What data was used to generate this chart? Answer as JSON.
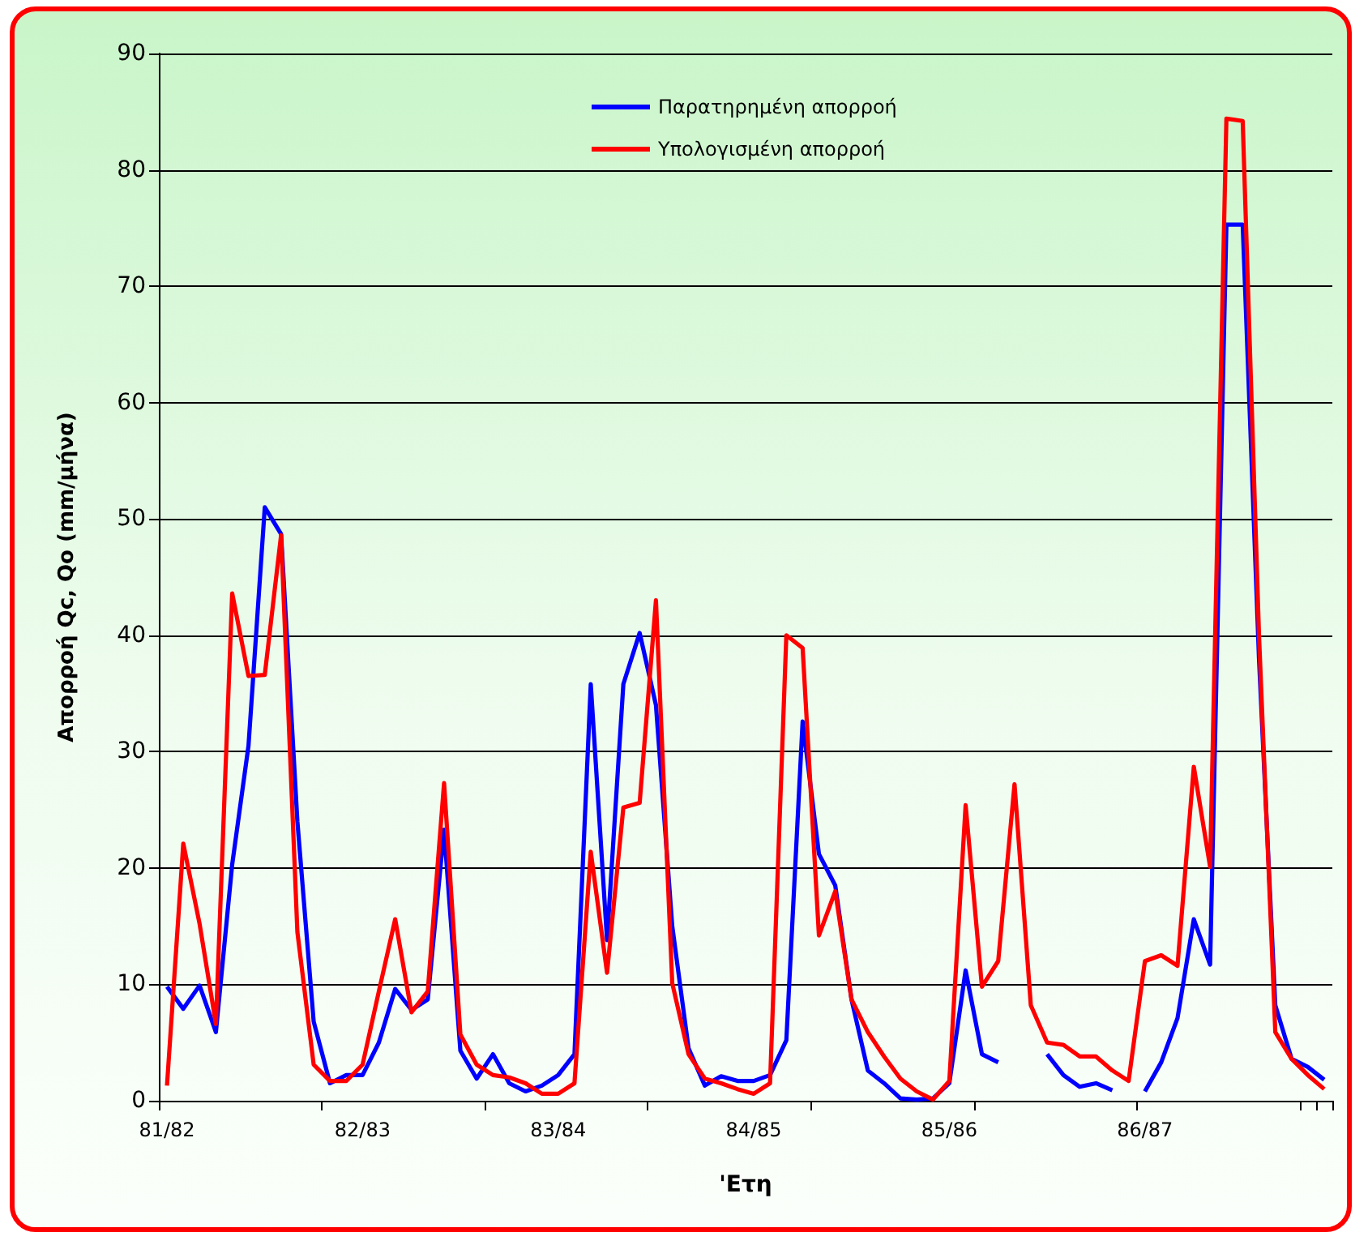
{
  "chart_data": {
    "type": "line",
    "xlabel": "'Ετη",
    "ylabel": "Απορροή Qc, Qo (mm/μήνα)",
    "categories": [
      "81/82",
      null,
      null,
      null,
      null,
      null,
      null,
      null,
      null,
      null,
      null,
      null,
      "82/83",
      null,
      null,
      null,
      null,
      null,
      null,
      null,
      null,
      null,
      null,
      null,
      "83/84",
      null,
      null,
      null,
      null,
      null,
      null,
      null,
      null,
      null,
      null,
      null,
      "84/85",
      null,
      null,
      null,
      null,
      null,
      null,
      null,
      null,
      null,
      null,
      null,
      "85/86",
      null,
      null,
      null,
      null,
      null,
      null,
      null,
      null,
      null,
      null,
      null,
      "86/87",
      null,
      null,
      null,
      null,
      null,
      null,
      null,
      null,
      null,
      null,
      null
    ],
    "series": [
      {
        "name": "Παρατηρημένη απορροή",
        "color": "#0000ff",
        "values": [
          9.8,
          7.9,
          9.9,
          5.9,
          20.3,
          30.5,
          51.0,
          48.7,
          24,
          6.8,
          1.5,
          2.2,
          2.2,
          5.0,
          9.6,
          7.8,
          8.7,
          23.3,
          4.3,
          1.9,
          4.0,
          1.5,
          0.8,
          1.3,
          2.2,
          4.0,
          35.8,
          13.8,
          35.8,
          40.2,
          34,
          15,
          4.5,
          1.3,
          2.1,
          1.7,
          1.7,
          2.2,
          5.2,
          32.6,
          21.2,
          18.5,
          8.7,
          2.6,
          1.5,
          0.2,
          0.1,
          0.2,
          1.5,
          11.2,
          4.0,
          3.3,
          null,
          null,
          4.0,
          2.2,
          1.2,
          1.5,
          0.9,
          null,
          0.8,
          3.3,
          7.1,
          15.6,
          11.7,
          75.3,
          75.3,
          38,
          8.2,
          3.6,
          2.9,
          1.8
        ]
      },
      {
        "name": "Υπολογισμένη απορροή",
        "color": "#ff0000",
        "values": [
          1.3,
          22.1,
          15.2,
          6.6,
          43.6,
          36.5,
          36.6,
          48.6,
          14.5,
          3.1,
          1.7,
          1.7,
          3.1,
          9.4,
          15.6,
          7.6,
          9.4,
          27.3,
          5.7,
          3.1,
          2.2,
          2.0,
          1.5,
          0.6,
          0.6,
          1.5,
          21.4,
          11.0,
          25.2,
          25.6,
          43.0,
          10.1,
          4.0,
          1.9,
          1.5,
          1.0,
          0.6,
          1.5,
          40.0,
          38.9,
          14.2,
          18.0,
          8.7,
          5.9,
          3.8,
          1.9,
          0.8,
          0.1,
          1.7,
          25.4,
          9.8,
          12.0,
          27.2,
          8.2,
          5.0,
          4.8,
          3.8,
          3.8,
          2.6,
          1.7,
          12.0,
          12.5,
          11.6,
          28.7,
          20.1,
          84.4,
          84.2,
          40,
          5.9,
          3.6,
          2.2,
          1.0
        ]
      }
    ],
    "ylim": [
      0,
      90
    ],
    "yticks": [
      0,
      10,
      20,
      30,
      40,
      50,
      60,
      70,
      80,
      90
    ],
    "grid": "y",
    "legend": "top"
  }
}
